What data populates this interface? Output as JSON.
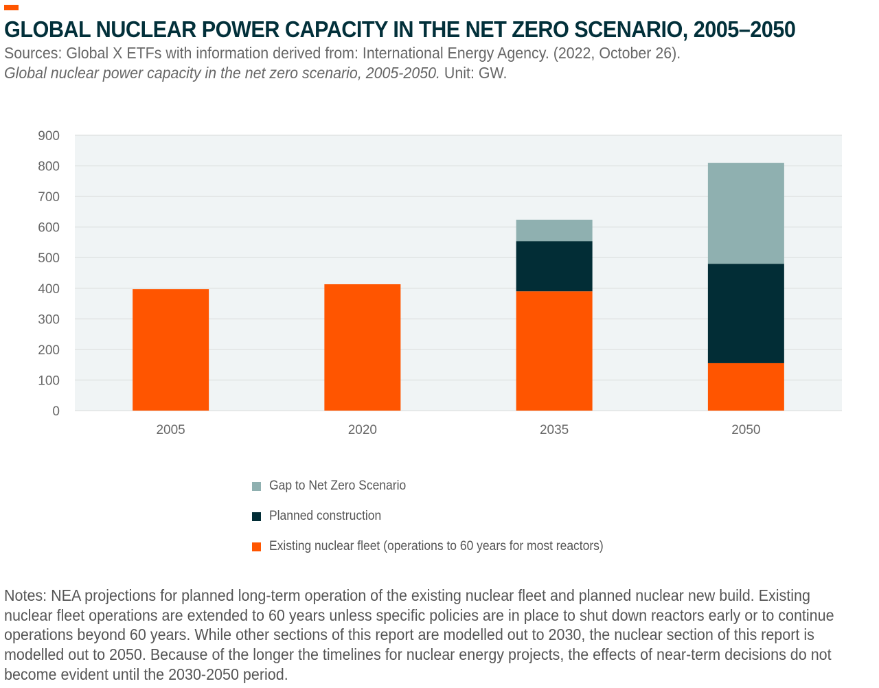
{
  "header": {
    "title": "GLOBAL NUCLEAR POWER CAPACITY IN THE NET ZERO SCENARIO, 2005–2050",
    "source_line1": "Sources: Global X ETFs with information derived from: International Energy Agency. (2022, October 26).",
    "source_line2_italic": "Global nuclear power capacity in the net zero scenario, 2005-2050.",
    "source_line2_rest": " Unit: GW."
  },
  "colors": {
    "accent": "#ff5500",
    "existing": "#ff5500",
    "planned": "#022d36",
    "gap": "#8fb0b0",
    "plot_bg": "#f0f4f5",
    "grid": "#e1e4e4",
    "title": "#02303a"
  },
  "chart_data": {
    "type": "bar",
    "stacked": true,
    "title": "Global nuclear power capacity in the net zero scenario, 2005-2050",
    "xlabel": "",
    "ylabel": "GW",
    "categories": [
      "2005",
      "2020",
      "2035",
      "2050"
    ],
    "ylim": [
      0,
      900
    ],
    "yticks": [
      0,
      100,
      200,
      300,
      400,
      500,
      600,
      700,
      800,
      900
    ],
    "grid": true,
    "legend_position": "bottom",
    "series": [
      {
        "name": "Existing nuclear fleet (operations to 60 years for most reactors)",
        "key": "existing",
        "values": [
          397,
          413,
          390,
          155
        ]
      },
      {
        "name": "Planned construction",
        "key": "planned",
        "values": [
          0,
          0,
          164,
          325
        ]
      },
      {
        "name": "Gap to Net Zero Scenario",
        "key": "gap",
        "values": [
          0,
          0,
          70,
          330
        ]
      }
    ]
  },
  "legend": [
    {
      "label": "Gap to Net Zero Scenario",
      "key": "gap"
    },
    {
      "label": "Planned construction",
      "key": "planned"
    },
    {
      "label": "Existing nuclear fleet (operations to 60 years for most reactors)",
      "key": "existing"
    }
  ],
  "notes": "Notes: NEA projections for planned long-term operation of the existing nuclear fleet and planned nuclear new build. Existing nuclear fleet operations are extended to 60 years unless specific policies are in place to shut down reactors early or to continue operations beyond 60 years. While other sections of this report are modelled out to 2030, the nuclear section of this report is modelled out to 2050. Because of the longer the timelines for nuclear energy projects, the effects of near-term decisions do not become evident until the 2030-2050 period."
}
